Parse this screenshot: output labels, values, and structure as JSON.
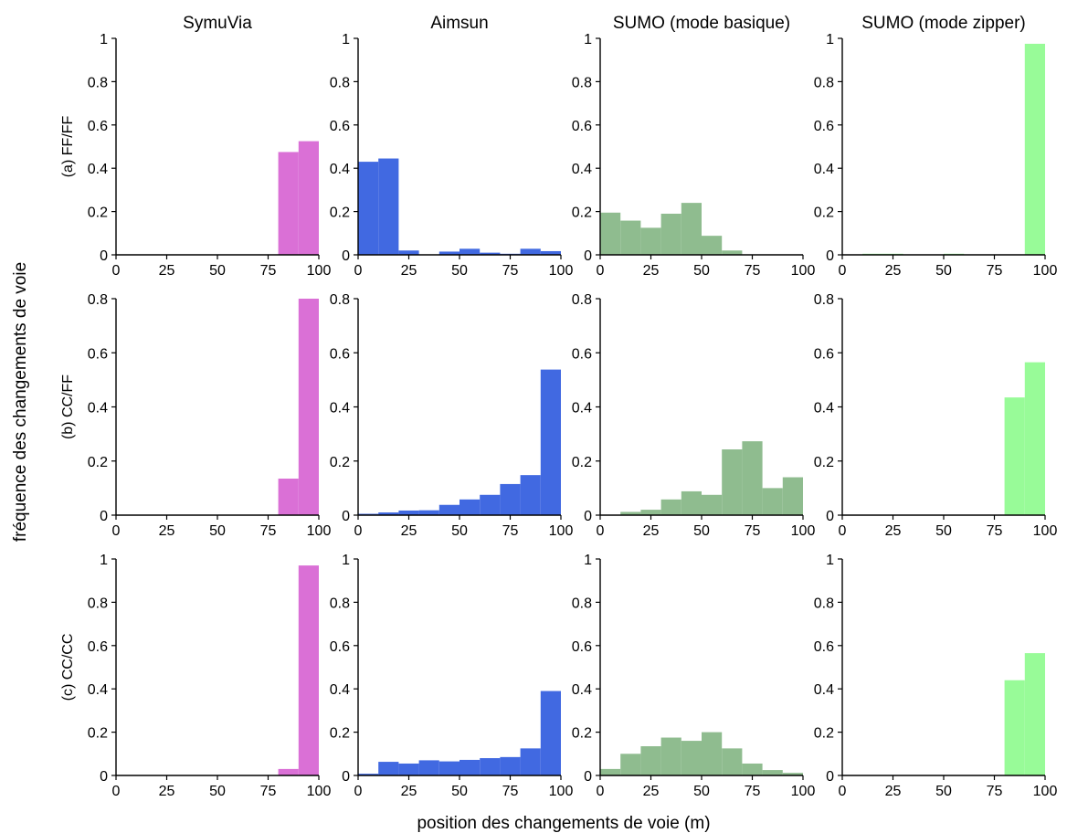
{
  "figure": {
    "xlabel": "position des changements de voie (m)",
    "ylabel": "fréquence des changements de voie"
  },
  "columns": [
    "SymuVia",
    "Aimsun",
    "SUMO (mode basique)",
    "SUMO (mode zipper)"
  ],
  "rows": [
    "(a) FF/FF",
    "(b) CC/FF",
    "(c) CC/CC"
  ],
  "colors": {
    "SymuVia": "#da70d6",
    "Aimsun": "#4169e1",
    "SUMO (mode basique)": "#8fbc8f",
    "SUMO (mode zipper)": "#98fb98"
  },
  "chart_data": [
    {
      "type": "bar",
      "row": "(a) FF/FF",
      "col": "SymuVia",
      "bin_edges": [
        0,
        10,
        20,
        30,
        40,
        50,
        60,
        70,
        80,
        90,
        100
      ],
      "values": [
        0,
        0,
        0,
        0,
        0,
        0,
        0,
        0,
        0.475,
        0.525
      ],
      "xlim": [
        0,
        100
      ],
      "ylim": [
        0,
        1
      ],
      "xticks": [
        "0",
        "25",
        "50",
        "75",
        "100"
      ],
      "yticks": [
        "0",
        "0.2",
        "0.4",
        "0.6",
        "0.8",
        "1"
      ]
    },
    {
      "type": "bar",
      "row": "(a) FF/FF",
      "col": "Aimsun",
      "bin_edges": [
        0,
        10,
        20,
        30,
        40,
        50,
        60,
        70,
        80,
        90,
        100
      ],
      "values": [
        0.43,
        0.445,
        0.02,
        0,
        0.015,
        0.028,
        0.01,
        0.005,
        0.028,
        0.017
      ],
      "xlim": [
        0,
        100
      ],
      "ylim": [
        0,
        1
      ],
      "xticks": [
        "0",
        "25",
        "50",
        "75",
        "100"
      ],
      "yticks": [
        "0",
        "0.2",
        "0.4",
        "0.6",
        "0.8",
        "1"
      ]
    },
    {
      "type": "bar",
      "row": "(a) FF/FF",
      "col": "SUMO (mode basique)",
      "bin_edges": [
        0,
        10,
        20,
        30,
        40,
        50,
        60,
        70,
        80,
        90,
        100
      ],
      "values": [
        0.195,
        0.158,
        0.125,
        0.19,
        0.24,
        0.088,
        0.02,
        0,
        0,
        0
      ],
      "xlim": [
        0,
        100
      ],
      "ylim": [
        0,
        1
      ],
      "xticks": [
        "0",
        "25",
        "50",
        "75",
        "100"
      ],
      "yticks": [
        "0",
        "0.2",
        "0.4",
        "0.6",
        "0.8",
        "1"
      ]
    },
    {
      "type": "bar",
      "row": "(a) FF/FF",
      "col": "SUMO (mode zipper)",
      "bin_edges": [
        0,
        10,
        20,
        30,
        40,
        50,
        60,
        70,
        80,
        90,
        100
      ],
      "values": [
        0,
        0.005,
        0.005,
        0,
        0,
        0.005,
        0,
        0,
        0,
        0.975
      ],
      "xlim": [
        0,
        100
      ],
      "ylim": [
        0,
        1
      ],
      "xticks": [
        "0",
        "25",
        "50",
        "75",
        "100"
      ],
      "yticks": [
        "0",
        "0.2",
        "0.4",
        "0.6",
        "0.8",
        "1"
      ]
    },
    {
      "type": "bar",
      "row": "(b) CC/FF",
      "col": "SymuVia",
      "bin_edges": [
        0,
        10,
        20,
        30,
        40,
        50,
        60,
        70,
        80,
        90,
        100
      ],
      "values": [
        0,
        0,
        0,
        0,
        0,
        0,
        0,
        0,
        0.135,
        0.8
      ],
      "xlim": [
        0,
        100
      ],
      "ylim": [
        0,
        0.8
      ],
      "xticks": [
        "0",
        "25",
        "50",
        "75",
        "100"
      ],
      "yticks": [
        "0",
        "0.2",
        "0.4",
        "0.6",
        "0.8"
      ]
    },
    {
      "type": "bar",
      "row": "(b) CC/FF",
      "col": "Aimsun",
      "bin_edges": [
        0,
        10,
        20,
        30,
        40,
        50,
        60,
        70,
        80,
        90,
        100
      ],
      "values": [
        0.005,
        0.01,
        0.017,
        0.018,
        0.038,
        0.058,
        0.075,
        0.115,
        0.148,
        0.538
      ],
      "xlim": [
        0,
        100
      ],
      "ylim": [
        0,
        0.8
      ],
      "xticks": [
        "0",
        "25",
        "50",
        "75",
        "100"
      ],
      "yticks": [
        "0",
        "0.2",
        "0.4",
        "0.6",
        "0.8"
      ]
    },
    {
      "type": "bar",
      "row": "(b) CC/FF",
      "col": "SUMO (mode basique)",
      "bin_edges": [
        0,
        10,
        20,
        30,
        40,
        50,
        60,
        70,
        80,
        90,
        100
      ],
      "values": [
        0,
        0.012,
        0.02,
        0.058,
        0.088,
        0.075,
        0.243,
        0.273,
        0.1,
        0.14
      ],
      "xlim": [
        0,
        100
      ],
      "ylim": [
        0,
        0.8
      ],
      "xticks": [
        "0",
        "25",
        "50",
        "75",
        "100"
      ],
      "yticks": [
        "0",
        "0.2",
        "0.4",
        "0.6",
        "0.8"
      ]
    },
    {
      "type": "bar",
      "row": "(b) CC/FF",
      "col": "SUMO (mode zipper)",
      "bin_edges": [
        0,
        10,
        20,
        30,
        40,
        50,
        60,
        70,
        80,
        90,
        100
      ],
      "values": [
        0,
        0,
        0,
        0,
        0,
        0,
        0,
        0,
        0.435,
        0.565
      ],
      "xlim": [
        0,
        100
      ],
      "ylim": [
        0,
        0.8
      ],
      "xticks": [
        "0",
        "25",
        "50",
        "75",
        "100"
      ],
      "yticks": [
        "0",
        "0.2",
        "0.4",
        "0.6",
        "0.8"
      ]
    },
    {
      "type": "bar",
      "row": "(c) CC/CC",
      "col": "SymuVia",
      "bin_edges": [
        0,
        10,
        20,
        30,
        40,
        50,
        60,
        70,
        80,
        90,
        100
      ],
      "values": [
        0,
        0,
        0,
        0,
        0,
        0,
        0,
        0,
        0.03,
        0.97
      ],
      "xlim": [
        0,
        100
      ],
      "ylim": [
        0,
        1
      ],
      "xticks": [
        "0",
        "25",
        "50",
        "75",
        "100"
      ],
      "yticks": [
        "0",
        "0.2",
        "0.4",
        "0.6",
        "0.8",
        "1"
      ]
    },
    {
      "type": "bar",
      "row": "(c) CC/CC",
      "col": "Aimsun",
      "bin_edges": [
        0,
        10,
        20,
        30,
        40,
        50,
        60,
        70,
        80,
        90,
        100
      ],
      "values": [
        0.008,
        0.063,
        0.055,
        0.07,
        0.065,
        0.072,
        0.08,
        0.085,
        0.125,
        0.39
      ],
      "xlim": [
        0,
        100
      ],
      "ylim": [
        0,
        1
      ],
      "xticks": [
        "0",
        "25",
        "50",
        "75",
        "100"
      ],
      "yticks": [
        "0",
        "0.2",
        "0.4",
        "0.6",
        "0.8",
        "1"
      ]
    },
    {
      "type": "bar",
      "row": "(c) CC/CC",
      "col": "SUMO (mode basique)",
      "bin_edges": [
        0,
        10,
        20,
        30,
        40,
        50,
        60,
        70,
        80,
        90,
        100
      ],
      "values": [
        0.03,
        0.1,
        0.135,
        0.175,
        0.16,
        0.2,
        0.125,
        0.055,
        0.025,
        0.012
      ],
      "xlim": [
        0,
        100
      ],
      "ylim": [
        0,
        1
      ],
      "xticks": [
        "0",
        "25",
        "50",
        "75",
        "100"
      ],
      "yticks": [
        "0",
        "0.2",
        "0.4",
        "0.6",
        "0.8",
        "1"
      ]
    },
    {
      "type": "bar",
      "row": "(c) CC/CC",
      "col": "SUMO (mode zipper)",
      "bin_edges": [
        0,
        10,
        20,
        30,
        40,
        50,
        60,
        70,
        80,
        90,
        100
      ],
      "values": [
        0,
        0,
        0,
        0,
        0,
        0,
        0,
        0,
        0.44,
        0.565
      ],
      "xlim": [
        0,
        100
      ],
      "ylim": [
        0,
        1
      ],
      "xticks": [
        "0",
        "25",
        "50",
        "75",
        "100"
      ],
      "yticks": [
        "0",
        "0.2",
        "0.4",
        "0.6",
        "0.8",
        "1"
      ]
    }
  ]
}
